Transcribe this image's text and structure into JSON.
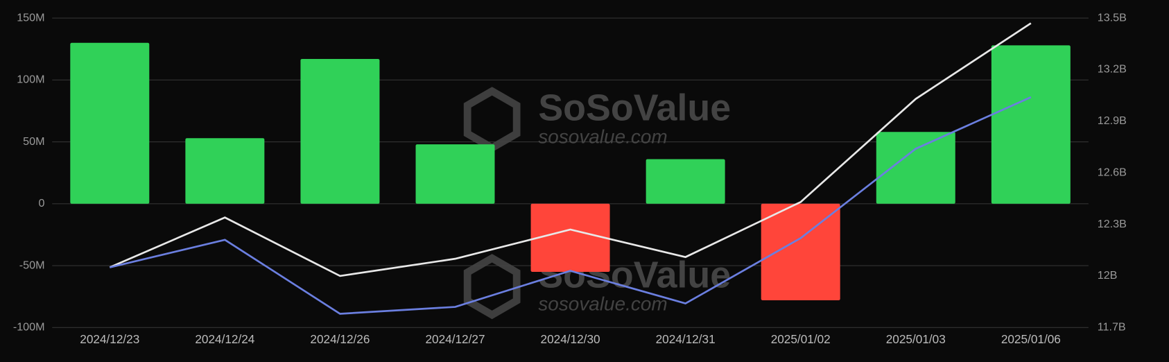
{
  "chart_data": {
    "type": "bar",
    "categories": [
      "2024/12/23",
      "2024/12/24",
      "2024/12/26",
      "2024/12/27",
      "2024/12/30",
      "2024/12/31",
      "2025/01/02",
      "2025/01/03",
      "2025/01/06"
    ],
    "series": [
      {
        "type": "bar",
        "color": "#30d158",
        "negative_color": "#ff453a",
        "values": [
          130,
          53,
          117,
          48,
          -55,
          36,
          -78,
          58,
          128
        ]
      },
      {
        "type": "line",
        "axis": "y2",
        "color": "#e8e8e8",
        "values": [
          12.05,
          12.34,
          12.0,
          12.1,
          12.27,
          12.11,
          12.43,
          13.03,
          13.47
        ]
      },
      {
        "type": "line",
        "axis": "y2",
        "color": "#6b7fe0",
        "values": [
          12.05,
          12.21,
          11.78,
          11.82,
          12.03,
          11.84,
          12.22,
          12.74,
          13.04
        ]
      }
    ],
    "ylim": [
      -100,
      150
    ],
    "yticks": [
      {
        "value": -100,
        "label": "-100M"
      },
      {
        "value": -50,
        "label": "-50M"
      },
      0,
      {
        "value": 50,
        "label": "50M"
      },
      {
        "value": 100,
        "label": "100M"
      },
      {
        "value": 150,
        "label": "150M"
      }
    ],
    "y2lim": [
      11.7,
      13.5
    ],
    "y2ticks": [
      {
        "value": 11.7,
        "label": "11.7B"
      },
      {
        "value": 12.0,
        "label": "12B"
      },
      {
        "value": 12.3,
        "label": "12.3B"
      },
      {
        "value": 12.6,
        "label": "12.6B"
      },
      {
        "value": 12.9,
        "label": "12.9B"
      },
      {
        "value": 13.2,
        "label": "13.2B"
      },
      {
        "value": 13.5,
        "label": "13.5B"
      }
    ],
    "grid": true,
    "watermark": {
      "name": "SoSoValue",
      "url": "sosovalue.com"
    }
  }
}
